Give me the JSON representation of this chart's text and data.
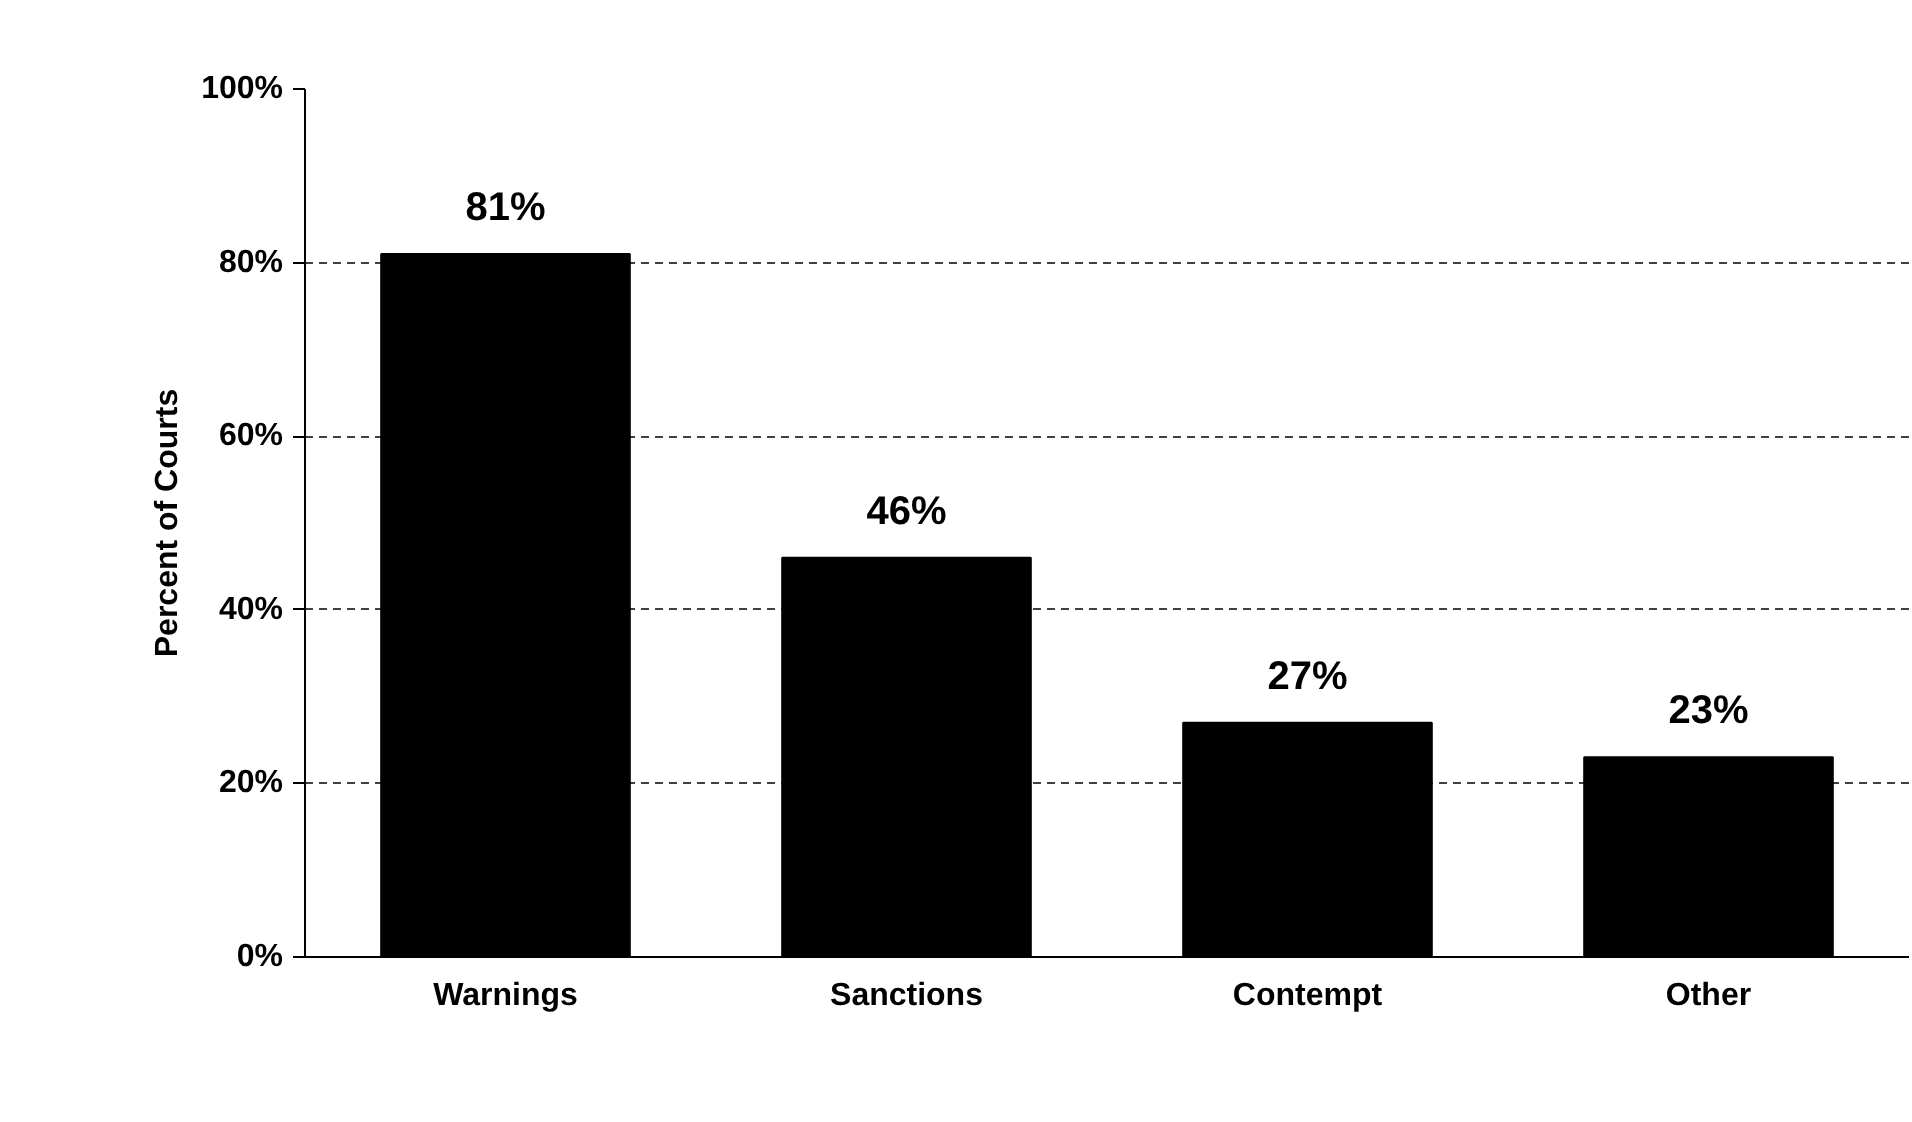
{
  "chart_data": {
    "type": "bar",
    "ylabel": "Percent of Courts",
    "categories": [
      "Warnings",
      "Sanctions",
      "Contempt",
      "Other"
    ],
    "values": [
      81,
      46,
      27,
      23
    ],
    "color": "#000000",
    "value_labels": [
      "81%",
      "46%",
      "27%",
      "23%"
    ],
    "ylim": [
      0,
      100
    ],
    "yticks": [
      {
        "value": 0,
        "label": "0%"
      },
      {
        "value": 20,
        "label": "20%"
      },
      {
        "value": 40,
        "label": "40%"
      },
      {
        "value": 60,
        "label": "60%"
      },
      {
        "value": 80,
        "label": "80%"
      },
      {
        "value": 100,
        "label": "100%"
      }
    ],
    "grid": "y",
    "line_style": "dashed"
  }
}
